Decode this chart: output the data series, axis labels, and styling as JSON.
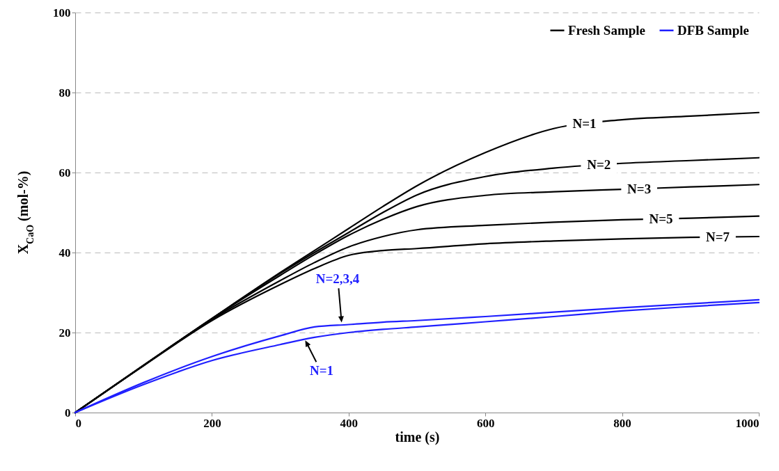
{
  "chart_data": {
    "type": "line",
    "xlabel": "time (s)",
    "ylabel": "X$_{CaO}$ (mol-%)",
    "x": [
      0,
      100,
      200,
      300,
      350,
      400,
      450,
      500,
      600,
      700,
      800,
      900,
      1000
    ],
    "series": [
      {
        "name": "Fresh Sample",
        "color": "#000000",
        "values": [
          0,
          11.8,
          23.5,
          35,
          40.5,
          46,
          51.5,
          56.7,
          65,
          71,
          73.2,
          74.1,
          75
        ]
      },
      {
        "color": "#000000",
        "values": [
          0,
          11.8,
          23.5,
          34.8,
          40,
          45,
          50,
          54.4,
          59,
          61.1,
          62.3,
          63,
          63.7
        ]
      },
      {
        "color": "#000000",
        "values": [
          0,
          11.8,
          23.5,
          34.3,
          39.5,
          44.3,
          48.3,
          51.5,
          54.3,
          55.2,
          55.8,
          56.4,
          57
        ]
      },
      {
        "color": "#000000",
        "values": [
          0,
          11.8,
          23.3,
          33,
          37.5,
          41.4,
          44,
          45.7,
          46.8,
          47.6,
          48.2,
          48.6,
          49.1
        ]
      },
      {
        "color": "#000000",
        "values": [
          0,
          11.7,
          23,
          32,
          36,
          39.3,
          40.5,
          41,
          42.2,
          42.9,
          43.4,
          43.8,
          44
        ]
      },
      {
        "name": "DFB Sample",
        "color": "#1f1fff",
        "values": [
          0,
          7.5,
          14,
          19.2,
          21.4,
          22,
          22.6,
          23,
          24,
          25.1,
          26.2,
          27.2,
          28.2
        ]
      },
      {
        "color": "#1f1fff",
        "values": [
          0,
          7,
          13,
          17,
          18.8,
          20,
          20.8,
          21.4,
          22.7,
          24,
          25.4,
          26.5,
          27.5
        ]
      }
    ],
    "annotations": [
      {
        "text": "N=1",
        "x": 745,
        "y": 72.1
      },
      {
        "text": "N=2",
        "x": 766,
        "y": 62
      },
      {
        "text": "N=3",
        "x": 825,
        "y": 55.8
      },
      {
        "text": "N=5",
        "x": 857,
        "y": 48.3
      },
      {
        "text": "N=7",
        "x": 940,
        "y": 43.9
      },
      {
        "text": "N=2,3,4",
        "x": 390,
        "y": 22
      },
      {
        "text": "N=1",
        "x": 335,
        "y": 18.5
      }
    ],
    "xlim": [
      0,
      1000
    ],
    "xticks": [
      0,
      200,
      400,
      600,
      800,
      1000
    ],
    "ylim": [
      0,
      100
    ],
    "yticks": [
      0,
      20,
      40,
      60,
      80,
      100
    ],
    "grid": "y",
    "legend": "top right",
    "line_style": "solid",
    "marker": "none"
  }
}
